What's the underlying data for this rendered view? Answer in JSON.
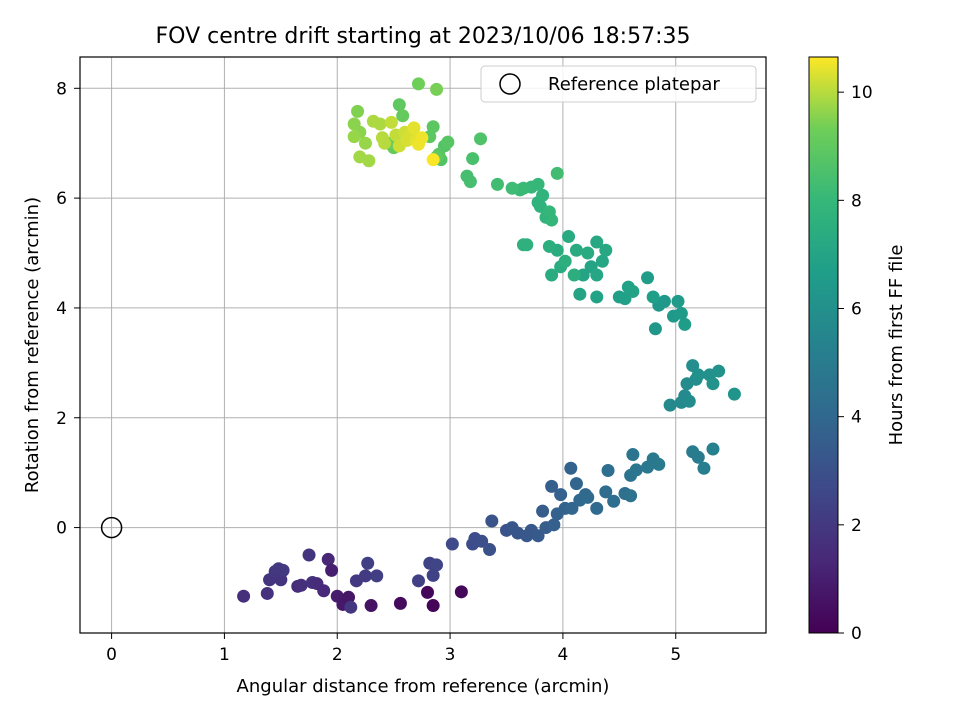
{
  "chart_data": {
    "type": "scatter",
    "title": "FOV centre drift starting at 2023/10/06 18:57:35",
    "xlabel": "Angular distance from reference (arcmin)",
    "ylabel": "Rotation from reference (arcmin)",
    "xlim": [
      -0.28,
      5.8
    ],
    "ylim": [
      -1.92,
      8.57
    ],
    "xticks": [
      0,
      1,
      2,
      3,
      4,
      5
    ],
    "yticks": [
      0,
      2,
      4,
      6,
      8
    ],
    "grid": true,
    "legend": {
      "placement": "top-right",
      "entries": [
        "Reference platepar"
      ]
    },
    "reference_point": {
      "x": 0,
      "y": 0,
      "label": "Reference platepar"
    },
    "colorbar": {
      "label": "Hours from first FF file",
      "range": [
        0,
        10.65
      ],
      "ticks": [
        0,
        2,
        4,
        6,
        8,
        10
      ],
      "colormap": "viridis"
    },
    "points": [
      {
        "x": 1.17,
        "y": -1.25,
        "c": 1.6
      },
      {
        "x": 1.38,
        "y": -1.2,
        "c": 1.7
      },
      {
        "x": 1.4,
        "y": -0.95,
        "c": 1.8
      },
      {
        "x": 1.45,
        "y": -0.8,
        "c": 1.9
      },
      {
        "x": 1.48,
        "y": -0.75,
        "c": 2.0
      },
      {
        "x": 1.5,
        "y": -0.95,
        "c": 1.8
      },
      {
        "x": 1.52,
        "y": -0.78,
        "c": 2.0
      },
      {
        "x": 1.65,
        "y": -1.07,
        "c": 1.5
      },
      {
        "x": 1.68,
        "y": -1.05,
        "c": 1.6
      },
      {
        "x": 1.75,
        "y": -0.5,
        "c": 1.8
      },
      {
        "x": 1.78,
        "y": -1.0,
        "c": 1.7
      },
      {
        "x": 1.82,
        "y": -1.02,
        "c": 1.5
      },
      {
        "x": 1.88,
        "y": -1.15,
        "c": 1.4
      },
      {
        "x": 1.92,
        "y": -0.58,
        "c": 1.3
      },
      {
        "x": 1.95,
        "y": -0.78,
        "c": 1.0
      },
      {
        "x": 2.0,
        "y": -1.25,
        "c": 0.9
      },
      {
        "x": 2.05,
        "y": -1.4,
        "c": 0.8
      },
      {
        "x": 2.1,
        "y": -1.27,
        "c": 0.7
      },
      {
        "x": 2.12,
        "y": -1.45,
        "c": 1.9
      },
      {
        "x": 2.17,
        "y": -0.97,
        "c": 2.0
      },
      {
        "x": 2.25,
        "y": -0.88,
        "c": 2.1
      },
      {
        "x": 2.27,
        "y": -0.65,
        "c": 2.3
      },
      {
        "x": 2.3,
        "y": -1.42,
        "c": 0.6
      },
      {
        "x": 2.35,
        "y": -0.88,
        "c": 2.2
      },
      {
        "x": 2.56,
        "y": -1.38,
        "c": 0.3
      },
      {
        "x": 2.72,
        "y": -0.97,
        "c": 2.3
      },
      {
        "x": 2.8,
        "y": -1.18,
        "c": 0.2
      },
      {
        "x": 2.82,
        "y": -0.65,
        "c": 2.4
      },
      {
        "x": 2.85,
        "y": -0.87,
        "c": 2.4
      },
      {
        "x": 2.85,
        "y": -1.42,
        "c": 0.1
      },
      {
        "x": 2.88,
        "y": -0.68,
        "c": 2.5
      },
      {
        "x": 3.02,
        "y": -0.3,
        "c": 2.7
      },
      {
        "x": 3.1,
        "y": -1.17,
        "c": 0.2
      },
      {
        "x": 3.2,
        "y": -0.3,
        "c": 2.8
      },
      {
        "x": 3.22,
        "y": -0.2,
        "c": 2.8
      },
      {
        "x": 3.28,
        "y": -0.25,
        "c": 2.9
      },
      {
        "x": 3.35,
        "y": -0.4,
        "c": 3.0
      },
      {
        "x": 3.37,
        "y": 0.12,
        "c": 3.1
      },
      {
        "x": 3.5,
        "y": -0.05,
        "c": 3.1
      },
      {
        "x": 3.55,
        "y": 0.0,
        "c": 3.2
      },
      {
        "x": 3.6,
        "y": -0.1,
        "c": 3.2
      },
      {
        "x": 3.68,
        "y": -0.15,
        "c": 3.3
      },
      {
        "x": 3.72,
        "y": -0.05,
        "c": 3.3
      },
      {
        "x": 3.78,
        "y": -0.15,
        "c": 3.4
      },
      {
        "x": 3.82,
        "y": 0.3,
        "c": 3.5
      },
      {
        "x": 3.85,
        "y": 0.0,
        "c": 3.5
      },
      {
        "x": 3.9,
        "y": 0.75,
        "c": 3.6
      },
      {
        "x": 3.92,
        "y": 0.05,
        "c": 3.6
      },
      {
        "x": 3.95,
        "y": 0.25,
        "c": 3.7
      },
      {
        "x": 3.98,
        "y": 0.6,
        "c": 3.7
      },
      {
        "x": 4.02,
        "y": 0.35,
        "c": 3.8
      },
      {
        "x": 4.07,
        "y": 1.08,
        "c": 3.8
      },
      {
        "x": 4.08,
        "y": 0.35,
        "c": 3.9
      },
      {
        "x": 4.12,
        "y": 0.8,
        "c": 3.9
      },
      {
        "x": 4.15,
        "y": 0.5,
        "c": 4.0
      },
      {
        "x": 4.2,
        "y": 0.6,
        "c": 4.0
      },
      {
        "x": 4.22,
        "y": 0.55,
        "c": 4.1
      },
      {
        "x": 4.3,
        "y": 0.35,
        "c": 4.1
      },
      {
        "x": 4.38,
        "y": 0.65,
        "c": 4.2
      },
      {
        "x": 4.4,
        "y": 1.04,
        "c": 4.3
      },
      {
        "x": 4.45,
        "y": 0.48,
        "c": 4.3
      },
      {
        "x": 4.55,
        "y": 0.62,
        "c": 4.4
      },
      {
        "x": 4.6,
        "y": 0.58,
        "c": 4.5
      },
      {
        "x": 4.6,
        "y": 0.95,
        "c": 4.6
      },
      {
        "x": 4.62,
        "y": 1.33,
        "c": 4.7
      },
      {
        "x": 4.65,
        "y": 1.05,
        "c": 4.7
      },
      {
        "x": 4.75,
        "y": 1.1,
        "c": 4.8
      },
      {
        "x": 4.8,
        "y": 1.25,
        "c": 4.8
      },
      {
        "x": 4.85,
        "y": 1.15,
        "c": 4.9
      },
      {
        "x": 5.15,
        "y": 1.38,
        "c": 5.0
      },
      {
        "x": 5.2,
        "y": 1.28,
        "c": 5.0
      },
      {
        "x": 5.25,
        "y": 1.08,
        "c": 5.1
      },
      {
        "x": 5.33,
        "y": 1.43,
        "c": 5.2
      },
      {
        "x": 4.95,
        "y": 2.23,
        "c": 5.6
      },
      {
        "x": 5.05,
        "y": 2.28,
        "c": 5.7
      },
      {
        "x": 5.08,
        "y": 2.4,
        "c": 5.7
      },
      {
        "x": 5.1,
        "y": 2.62,
        "c": 5.8
      },
      {
        "x": 5.12,
        "y": 2.3,
        "c": 5.8
      },
      {
        "x": 5.15,
        "y": 2.95,
        "c": 5.9
      },
      {
        "x": 5.18,
        "y": 2.7,
        "c": 5.9
      },
      {
        "x": 5.2,
        "y": 2.78,
        "c": 6.0
      },
      {
        "x": 5.3,
        "y": 2.78,
        "c": 6.0
      },
      {
        "x": 5.33,
        "y": 2.62,
        "c": 6.1
      },
      {
        "x": 5.38,
        "y": 2.85,
        "c": 6.1
      },
      {
        "x": 5.52,
        "y": 2.43,
        "c": 6.2
      },
      {
        "x": 4.82,
        "y": 3.62,
        "c": 6.3
      },
      {
        "x": 4.85,
        "y": 4.05,
        "c": 6.3
      },
      {
        "x": 4.9,
        "y": 4.12,
        "c": 6.4
      },
      {
        "x": 4.98,
        "y": 3.85,
        "c": 6.4
      },
      {
        "x": 5.02,
        "y": 4.12,
        "c": 6.5
      },
      {
        "x": 5.05,
        "y": 3.9,
        "c": 6.5
      },
      {
        "x": 5.08,
        "y": 3.7,
        "c": 6.6
      },
      {
        "x": 4.75,
        "y": 4.55,
        "c": 6.6
      },
      {
        "x": 4.8,
        "y": 4.2,
        "c": 6.7
      },
      {
        "x": 4.5,
        "y": 4.2,
        "c": 6.7
      },
      {
        "x": 4.55,
        "y": 4.17,
        "c": 6.8
      },
      {
        "x": 4.58,
        "y": 4.38,
        "c": 6.8
      },
      {
        "x": 4.62,
        "y": 4.3,
        "c": 6.9
      },
      {
        "x": 4.3,
        "y": 4.2,
        "c": 6.9
      },
      {
        "x": 4.15,
        "y": 4.25,
        "c": 7.0
      },
      {
        "x": 4.18,
        "y": 4.6,
        "c": 7.0
      },
      {
        "x": 4.25,
        "y": 4.75,
        "c": 7.0
      },
      {
        "x": 4.3,
        "y": 4.6,
        "c": 7.1
      },
      {
        "x": 4.35,
        "y": 4.85,
        "c": 7.1
      },
      {
        "x": 4.38,
        "y": 5.05,
        "c": 7.2
      },
      {
        "x": 4.3,
        "y": 5.2,
        "c": 7.2
      },
      {
        "x": 4.22,
        "y": 5.0,
        "c": 7.3
      },
      {
        "x": 4.12,
        "y": 5.05,
        "c": 7.3
      },
      {
        "x": 4.05,
        "y": 5.3,
        "c": 7.3
      },
      {
        "x": 3.98,
        "y": 4.75,
        "c": 7.4
      },
      {
        "x": 3.9,
        "y": 4.6,
        "c": 7.4
      },
      {
        "x": 3.95,
        "y": 5.05,
        "c": 7.4
      },
      {
        "x": 3.88,
        "y": 5.12,
        "c": 7.5
      },
      {
        "x": 4.1,
        "y": 4.6,
        "c": 7.5
      },
      {
        "x": 4.02,
        "y": 4.85,
        "c": 7.5
      },
      {
        "x": 3.65,
        "y": 5.15,
        "c": 7.6
      },
      {
        "x": 3.68,
        "y": 5.15,
        "c": 7.6
      },
      {
        "x": 3.78,
        "y": 5.92,
        "c": 7.7
      },
      {
        "x": 3.8,
        "y": 5.85,
        "c": 7.7
      },
      {
        "x": 3.82,
        "y": 6.05,
        "c": 7.8
      },
      {
        "x": 3.85,
        "y": 5.65,
        "c": 7.8
      },
      {
        "x": 3.88,
        "y": 5.75,
        "c": 7.9
      },
      {
        "x": 3.9,
        "y": 5.6,
        "c": 7.9
      },
      {
        "x": 3.78,
        "y": 6.25,
        "c": 8.0
      },
      {
        "x": 3.72,
        "y": 6.2,
        "c": 8.0
      },
      {
        "x": 3.62,
        "y": 6.15,
        "c": 8.1
      },
      {
        "x": 3.65,
        "y": 6.18,
        "c": 8.1
      },
      {
        "x": 3.55,
        "y": 6.18,
        "c": 8.2
      },
      {
        "x": 3.42,
        "y": 6.25,
        "c": 8.3
      },
      {
        "x": 3.95,
        "y": 6.45,
        "c": 8.3
      },
      {
        "x": 3.15,
        "y": 6.4,
        "c": 8.4
      },
      {
        "x": 3.18,
        "y": 6.3,
        "c": 8.4
      },
      {
        "x": 3.2,
        "y": 6.72,
        "c": 8.5
      },
      {
        "x": 3.27,
        "y": 7.08,
        "c": 8.6
      },
      {
        "x": 2.92,
        "y": 6.7,
        "c": 8.7
      },
      {
        "x": 2.95,
        "y": 6.95,
        "c": 8.7
      },
      {
        "x": 2.9,
        "y": 6.8,
        "c": 8.8
      },
      {
        "x": 2.98,
        "y": 7.02,
        "c": 8.8
      },
      {
        "x": 2.85,
        "y": 7.3,
        "c": 8.9
      },
      {
        "x": 2.82,
        "y": 7.12,
        "c": 8.9
      },
      {
        "x": 2.88,
        "y": 6.75,
        "c": 9.0
      },
      {
        "x": 2.55,
        "y": 7.7,
        "c": 9.0
      },
      {
        "x": 2.58,
        "y": 7.5,
        "c": 9.1
      },
      {
        "x": 2.5,
        "y": 6.92,
        "c": 9.1
      },
      {
        "x": 2.45,
        "y": 7.0,
        "c": 9.2
      },
      {
        "x": 2.72,
        "y": 8.08,
        "c": 9.3
      },
      {
        "x": 2.88,
        "y": 7.98,
        "c": 9.4
      },
      {
        "x": 2.18,
        "y": 7.58,
        "c": 9.5
      },
      {
        "x": 2.15,
        "y": 7.35,
        "c": 9.6
      },
      {
        "x": 2.2,
        "y": 7.2,
        "c": 9.6
      },
      {
        "x": 2.15,
        "y": 7.12,
        "c": 9.7
      },
      {
        "x": 2.25,
        "y": 7.0,
        "c": 9.7
      },
      {
        "x": 2.2,
        "y": 6.75,
        "c": 9.8
      },
      {
        "x": 2.28,
        "y": 6.68,
        "c": 9.8
      },
      {
        "x": 2.32,
        "y": 7.4,
        "c": 9.9
      },
      {
        "x": 2.38,
        "y": 7.35,
        "c": 9.9
      },
      {
        "x": 2.4,
        "y": 7.1,
        "c": 10.0
      },
      {
        "x": 2.42,
        "y": 7.0,
        "c": 10.0
      },
      {
        "x": 2.48,
        "y": 7.38,
        "c": 10.1
      },
      {
        "x": 2.52,
        "y": 7.15,
        "c": 10.1
      },
      {
        "x": 2.55,
        "y": 6.95,
        "c": 10.2
      },
      {
        "x": 2.6,
        "y": 7.2,
        "c": 10.2
      },
      {
        "x": 2.62,
        "y": 7.05,
        "c": 10.3
      },
      {
        "x": 2.65,
        "y": 7.15,
        "c": 10.3
      },
      {
        "x": 2.68,
        "y": 7.28,
        "c": 10.4
      },
      {
        "x": 2.7,
        "y": 7.05,
        "c": 10.4
      },
      {
        "x": 2.72,
        "y": 6.98,
        "c": 10.5
      },
      {
        "x": 2.75,
        "y": 7.1,
        "c": 10.5
      },
      {
        "x": 2.85,
        "y": 6.7,
        "c": 10.6
      }
    ]
  }
}
